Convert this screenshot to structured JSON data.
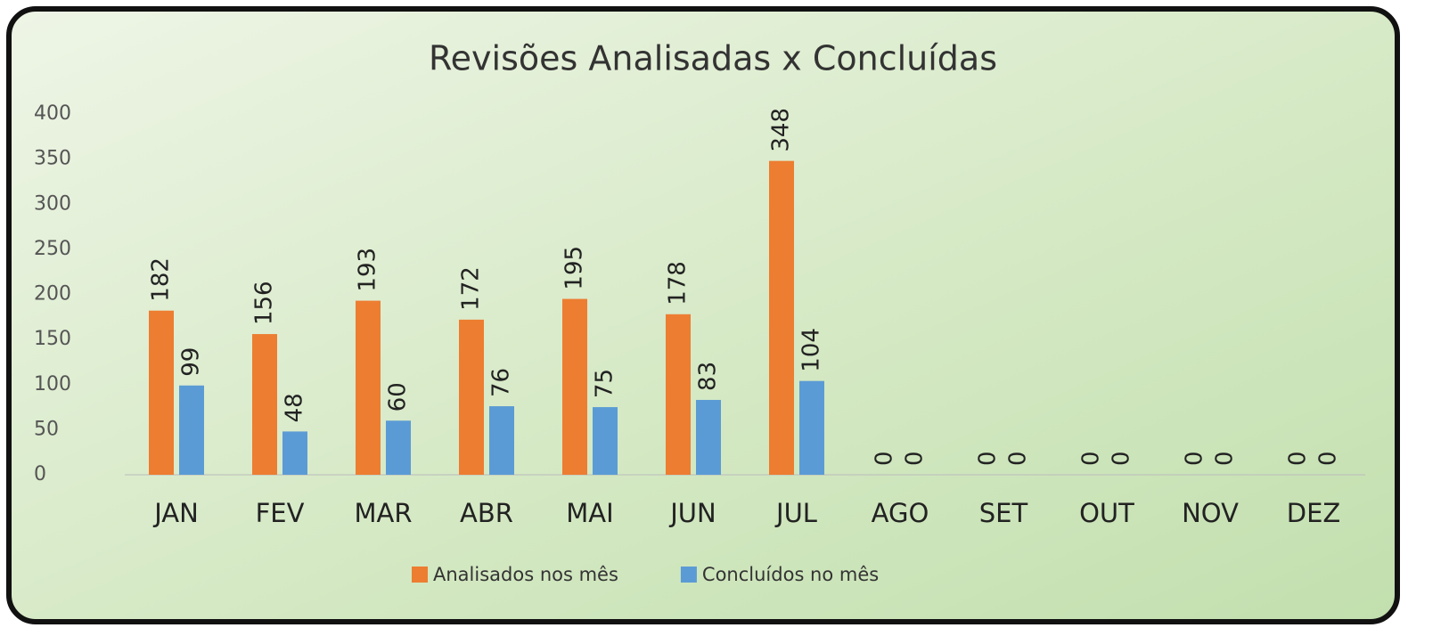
{
  "chart_data": {
    "type": "bar",
    "title": "Revisões Analisadas x Concluídas",
    "categories": [
      "JAN",
      "FEV",
      "MAR",
      "ABR",
      "MAI",
      "JUN",
      "JUL",
      "AGO",
      "SET",
      "OUT",
      "NOV",
      "DEZ"
    ],
    "series": [
      {
        "name": "Analisados nos mês",
        "color": "#ed7d31",
        "values": [
          182,
          156,
          193,
          172,
          195,
          178,
          348,
          0,
          0,
          0,
          0,
          0
        ]
      },
      {
        "name": "Concluídos no mês",
        "color": "#5b9bd5",
        "values": [
          99,
          48,
          60,
          76,
          75,
          83,
          104,
          0,
          0,
          0,
          0,
          0
        ]
      }
    ],
    "ylim": [
      0,
      400
    ],
    "yticks": [
      0,
      50,
      100,
      150,
      200,
      250,
      300,
      350,
      400
    ],
    "grid": false,
    "legend": "bottom"
  }
}
